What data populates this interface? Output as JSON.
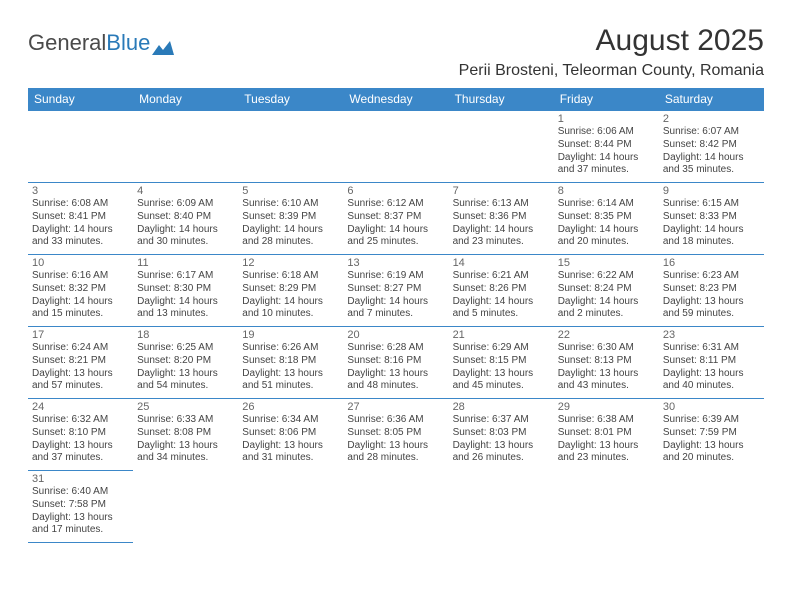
{
  "logo": {
    "word1": "General",
    "word2": "Blue"
  },
  "title": "August 2025",
  "location": "Perii Brosteni, Teleorman County, Romania",
  "colors": {
    "header_bg": "#3b87c8",
    "header_text": "#ffffff",
    "border": "#3b87c8",
    "text": "#444444",
    "daynum": "#666666",
    "logo_gray": "#4a4a4a",
    "logo_blue": "#2a7ab8"
  },
  "typography": {
    "month_title_size": 30,
    "location_size": 16,
    "th_size": 12,
    "daynum_size": 11,
    "info_size": 10,
    "logo_size": 22
  },
  "weekdays": [
    "Sunday",
    "Monday",
    "Tuesday",
    "Wednesday",
    "Thursday",
    "Friday",
    "Saturday"
  ],
  "weeks": [
    [
      null,
      null,
      null,
      null,
      null,
      {
        "n": "1",
        "sr": "Sunrise: 6:06 AM",
        "ss": "Sunset: 8:44 PM",
        "dl": "Daylight: 14 hours and 37 minutes."
      },
      {
        "n": "2",
        "sr": "Sunrise: 6:07 AM",
        "ss": "Sunset: 8:42 PM",
        "dl": "Daylight: 14 hours and 35 minutes."
      }
    ],
    [
      {
        "n": "3",
        "sr": "Sunrise: 6:08 AM",
        "ss": "Sunset: 8:41 PM",
        "dl": "Daylight: 14 hours and 33 minutes."
      },
      {
        "n": "4",
        "sr": "Sunrise: 6:09 AM",
        "ss": "Sunset: 8:40 PM",
        "dl": "Daylight: 14 hours and 30 minutes."
      },
      {
        "n": "5",
        "sr": "Sunrise: 6:10 AM",
        "ss": "Sunset: 8:39 PM",
        "dl": "Daylight: 14 hours and 28 minutes."
      },
      {
        "n": "6",
        "sr": "Sunrise: 6:12 AM",
        "ss": "Sunset: 8:37 PM",
        "dl": "Daylight: 14 hours and 25 minutes."
      },
      {
        "n": "7",
        "sr": "Sunrise: 6:13 AM",
        "ss": "Sunset: 8:36 PM",
        "dl": "Daylight: 14 hours and 23 minutes."
      },
      {
        "n": "8",
        "sr": "Sunrise: 6:14 AM",
        "ss": "Sunset: 8:35 PM",
        "dl": "Daylight: 14 hours and 20 minutes."
      },
      {
        "n": "9",
        "sr": "Sunrise: 6:15 AM",
        "ss": "Sunset: 8:33 PM",
        "dl": "Daylight: 14 hours and 18 minutes."
      }
    ],
    [
      {
        "n": "10",
        "sr": "Sunrise: 6:16 AM",
        "ss": "Sunset: 8:32 PM",
        "dl": "Daylight: 14 hours and 15 minutes."
      },
      {
        "n": "11",
        "sr": "Sunrise: 6:17 AM",
        "ss": "Sunset: 8:30 PM",
        "dl": "Daylight: 14 hours and 13 minutes."
      },
      {
        "n": "12",
        "sr": "Sunrise: 6:18 AM",
        "ss": "Sunset: 8:29 PM",
        "dl": "Daylight: 14 hours and 10 minutes."
      },
      {
        "n": "13",
        "sr": "Sunrise: 6:19 AM",
        "ss": "Sunset: 8:27 PM",
        "dl": "Daylight: 14 hours and 7 minutes."
      },
      {
        "n": "14",
        "sr": "Sunrise: 6:21 AM",
        "ss": "Sunset: 8:26 PM",
        "dl": "Daylight: 14 hours and 5 minutes."
      },
      {
        "n": "15",
        "sr": "Sunrise: 6:22 AM",
        "ss": "Sunset: 8:24 PM",
        "dl": "Daylight: 14 hours and 2 minutes."
      },
      {
        "n": "16",
        "sr": "Sunrise: 6:23 AM",
        "ss": "Sunset: 8:23 PM",
        "dl": "Daylight: 13 hours and 59 minutes."
      }
    ],
    [
      {
        "n": "17",
        "sr": "Sunrise: 6:24 AM",
        "ss": "Sunset: 8:21 PM",
        "dl": "Daylight: 13 hours and 57 minutes."
      },
      {
        "n": "18",
        "sr": "Sunrise: 6:25 AM",
        "ss": "Sunset: 8:20 PM",
        "dl": "Daylight: 13 hours and 54 minutes."
      },
      {
        "n": "19",
        "sr": "Sunrise: 6:26 AM",
        "ss": "Sunset: 8:18 PM",
        "dl": "Daylight: 13 hours and 51 minutes."
      },
      {
        "n": "20",
        "sr": "Sunrise: 6:28 AM",
        "ss": "Sunset: 8:16 PM",
        "dl": "Daylight: 13 hours and 48 minutes."
      },
      {
        "n": "21",
        "sr": "Sunrise: 6:29 AM",
        "ss": "Sunset: 8:15 PM",
        "dl": "Daylight: 13 hours and 45 minutes."
      },
      {
        "n": "22",
        "sr": "Sunrise: 6:30 AM",
        "ss": "Sunset: 8:13 PM",
        "dl": "Daylight: 13 hours and 43 minutes."
      },
      {
        "n": "23",
        "sr": "Sunrise: 6:31 AM",
        "ss": "Sunset: 8:11 PM",
        "dl": "Daylight: 13 hours and 40 minutes."
      }
    ],
    [
      {
        "n": "24",
        "sr": "Sunrise: 6:32 AM",
        "ss": "Sunset: 8:10 PM",
        "dl": "Daylight: 13 hours and 37 minutes."
      },
      {
        "n": "25",
        "sr": "Sunrise: 6:33 AM",
        "ss": "Sunset: 8:08 PM",
        "dl": "Daylight: 13 hours and 34 minutes."
      },
      {
        "n": "26",
        "sr": "Sunrise: 6:34 AM",
        "ss": "Sunset: 8:06 PM",
        "dl": "Daylight: 13 hours and 31 minutes."
      },
      {
        "n": "27",
        "sr": "Sunrise: 6:36 AM",
        "ss": "Sunset: 8:05 PM",
        "dl": "Daylight: 13 hours and 28 minutes."
      },
      {
        "n": "28",
        "sr": "Sunrise: 6:37 AM",
        "ss": "Sunset: 8:03 PM",
        "dl": "Daylight: 13 hours and 26 minutes."
      },
      {
        "n": "29",
        "sr": "Sunrise: 6:38 AM",
        "ss": "Sunset: 8:01 PM",
        "dl": "Daylight: 13 hours and 23 minutes."
      },
      {
        "n": "30",
        "sr": "Sunrise: 6:39 AM",
        "ss": "Sunset: 7:59 PM",
        "dl": "Daylight: 13 hours and 20 minutes."
      }
    ],
    [
      {
        "n": "31",
        "sr": "Sunrise: 6:40 AM",
        "ss": "Sunset: 7:58 PM",
        "dl": "Daylight: 13 hours and 17 minutes."
      },
      null,
      null,
      null,
      null,
      null,
      null
    ]
  ]
}
